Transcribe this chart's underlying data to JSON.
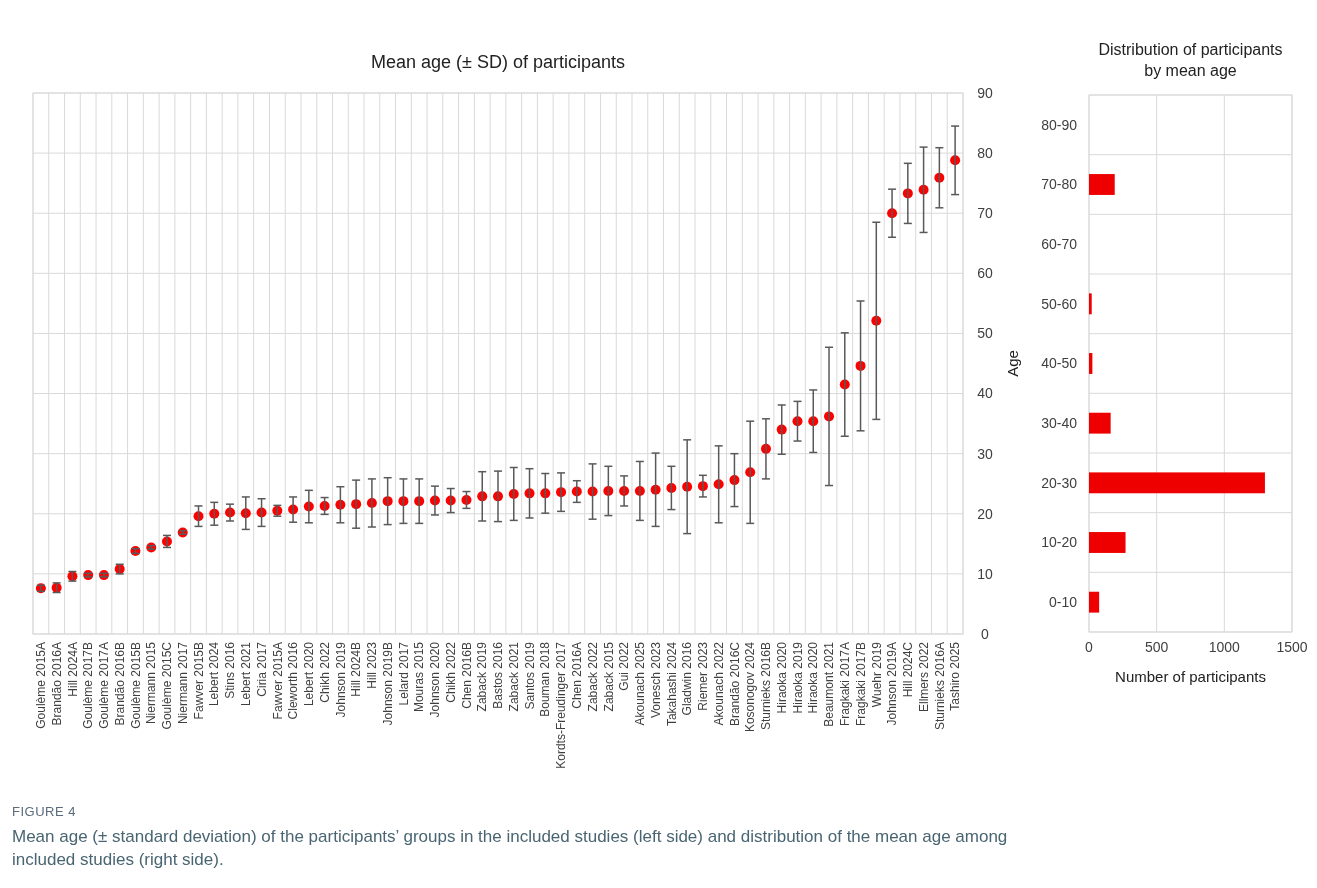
{
  "chart_data": [
    {
      "type": "scatter",
      "title": "Mean age (± SD) of participants",
      "color": "#ff0000",
      "marker": "circle",
      "grid": true,
      "ylim": [
        0,
        90
      ],
      "yticks": [
        0,
        10,
        20,
        30,
        40,
        50,
        60,
        70,
        80,
        90
      ],
      "categories": [
        "Goulème 2015A",
        "Brandão 2016A",
        "Hill 2024A",
        "Goulème 2017B",
        "Goulème 2017A",
        "Brandão 2016B",
        "Goulème 2015B",
        "Niermann 2015",
        "Goulème 2015C",
        "Niermann 2017",
        "Fawver 2015B",
        "Lebert 2024",
        "Stins 2016",
        "Lebert 2021",
        "Ciria  2017",
        "Fawver 2015A",
        "Cleworth 2016",
        "Lebert 2020",
        "Chikh  2022",
        "Johnson 2019",
        "Hill 2024B",
        "Hill 2023",
        "Johnson 2019B",
        "Lelard 2017",
        "Mouras 2015",
        "Johnson 2020",
        "Chikh  2022",
        "Chen 2016B",
        "Zaback 2019",
        "Bastos 2016",
        "Zaback 2021",
        "Santos 2019",
        "Bouman 2018",
        "Kordts-Freudinger 2017",
        "Chen 2016A",
        "Zaback 2022",
        "Zaback 2015",
        "Gui  2022",
        "Akounach 2025",
        "Vonesch 2023",
        "Takahashi 2024",
        "Gladwin 2016",
        "Riemer  2023",
        "Akounach 2022",
        "Brandão 2016C",
        "Kosonogov 2024",
        "Sturnieks 2016B",
        "Hiraoka 2020",
        "Hiraoka 2019",
        "Hiraoka 2020",
        "Beaumont 2021",
        "Fragkaki 2017A",
        "Fragkaki 2017B",
        "Wuehr 2019",
        "Johnson 2019A",
        "Hill 2024C",
        "Ellmers 2022",
        "Sturnieks 2016A",
        "Tashiro 2025"
      ],
      "values": [
        7.6,
        7.7,
        9.6,
        9.8,
        9.8,
        10.8,
        13.8,
        14.4,
        15.4,
        16.9,
        19.6,
        20.0,
        20.2,
        20.1,
        20.2,
        20.5,
        20.7,
        21.2,
        21.3,
        21.5,
        21.6,
        21.8,
        22.1,
        22.1,
        22.1,
        22.2,
        22.2,
        22.3,
        22.9,
        22.9,
        23.3,
        23.4,
        23.4,
        23.6,
        23.7,
        23.7,
        23.8,
        23.8,
        23.8,
        24.0,
        24.3,
        24.5,
        24.6,
        24.9,
        25.6,
        26.9,
        30.8,
        34.0,
        35.4,
        35.4,
        36.2,
        41.5,
        44.6,
        52.1,
        70.0,
        73.3,
        73.9,
        75.9,
        78.8
      ],
      "errors": [
        0.5,
        0.8,
        0.8,
        0.3,
        0.3,
        0.8,
        0.4,
        0.3,
        1.0,
        0.3,
        1.7,
        1.9,
        1.4,
        2.7,
        2.3,
        0.9,
        2.1,
        2.7,
        1.4,
        3.0,
        4.0,
        4.0,
        3.9,
        3.7,
        3.7,
        2.4,
        2.0,
        1.4,
        4.1,
        4.2,
        4.4,
        4.1,
        3.3,
        3.2,
        1.8,
        4.6,
        4.1,
        2.5,
        4.9,
        6.1,
        3.6,
        7.8,
        1.8,
        6.4,
        4.4,
        8.5,
        5.0,
        4.1,
        3.3,
        5.2,
        11.5,
        8.6,
        10.8,
        16.4,
        4.0,
        5.0,
        7.1,
        5.0,
        5.7
      ],
      "annotations": [
        "FIGURE 4",
        "Mean age (± standard deviation) of the participants’ groups in the included studies (left side) and distribution of the mean age among included studies (right side)."
      ]
    },
    {
      "type": "bar",
      "orientation": "horizontal",
      "title": "Distribution of participants by mean age",
      "xlabel": "Number of participants",
      "ylabel": "Age",
      "color": "#ee0000",
      "grid": true,
      "xlim": [
        0,
        1500
      ],
      "xticks": [
        0,
        500,
        1000,
        1500
      ],
      "categories": [
        "80-90",
        "70-80",
        "60-70",
        "50-60",
        "40-50",
        "30-40",
        "20-30",
        "10-20",
        "0-10"
      ],
      "values": [
        0,
        190,
        0,
        20,
        25,
        160,
        1300,
        270,
        75
      ]
    }
  ]
}
